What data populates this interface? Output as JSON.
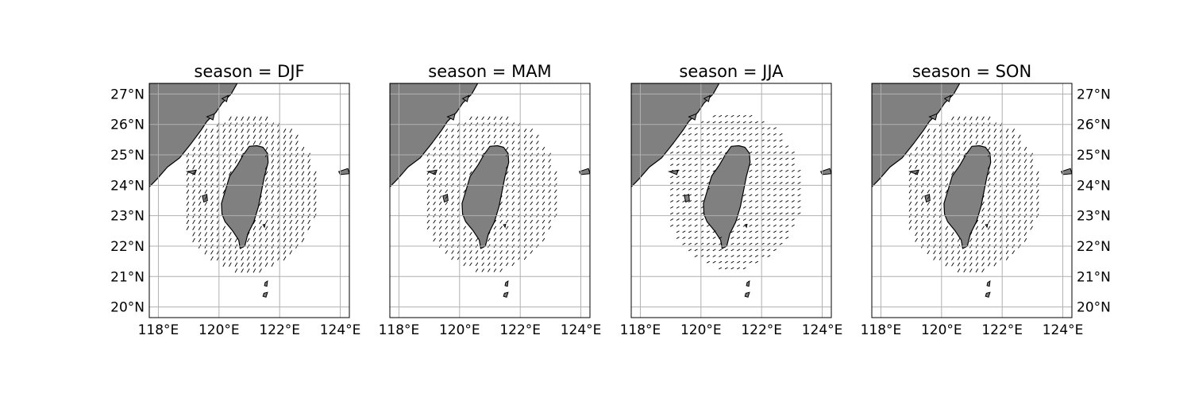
{
  "figure": {
    "panels": [
      {
        "title": "season = DJF",
        "direction_deg": 210,
        "length": 0.13
      },
      {
        "title": "season = MAM",
        "direction_deg": 215,
        "length": 0.11
      },
      {
        "title": "season = JJA",
        "direction_deg": 60,
        "length": 0.09
      },
      {
        "title": "season = SON",
        "direction_deg": 212,
        "length": 0.12
      }
    ],
    "x_ticks": [
      "118°E",
      "120°E",
      "122°E",
      "124°E"
    ],
    "y_ticks": [
      "20°N",
      "21°N",
      "22°N",
      "23°N",
      "24°N",
      "25°N",
      "26°N",
      "27°N"
    ],
    "colors": {
      "land": "#808080",
      "coast": "#000000",
      "grid": "#b0b0b0"
    }
  },
  "chart_data": {
    "type": "quiver-map",
    "extent": {
      "lon": [
        117.7,
        124.3
      ],
      "lat": [
        19.65,
        27.35
      ]
    },
    "x_ticks_values": [
      118,
      120,
      122,
      124
    ],
    "y_ticks_values": [
      20,
      21,
      22,
      23,
      24,
      25,
      26,
      27
    ],
    "grid": true,
    "y_labels_side": [
      "left",
      "none",
      "none",
      "right"
    ],
    "land_fill": "#808080"
  }
}
